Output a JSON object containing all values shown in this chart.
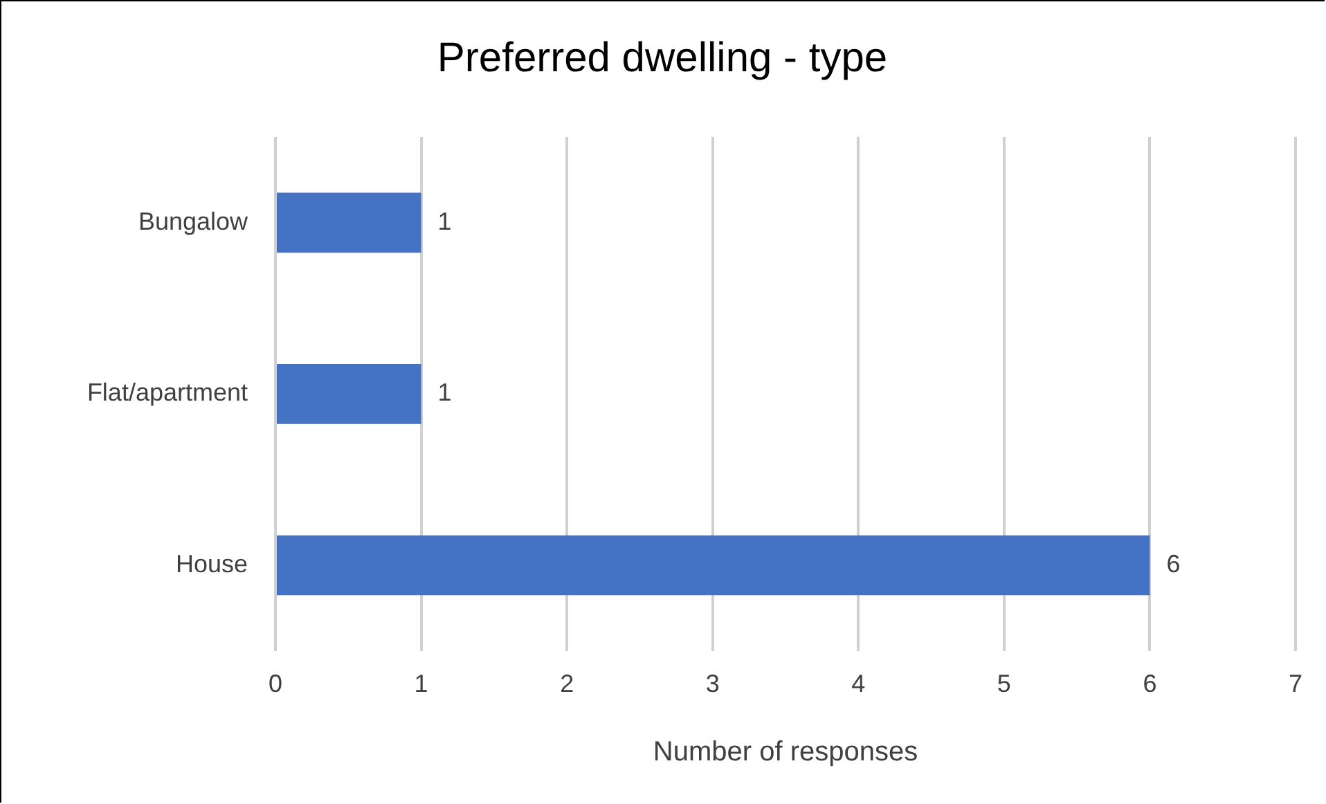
{
  "chart_data": {
    "type": "bar",
    "orientation": "horizontal",
    "title": "Preferred dwelling - type",
    "xlabel": "Number of responses",
    "categories": [
      "Bungalow",
      "Flat/apartment",
      "House"
    ],
    "values": [
      1,
      1,
      6
    ],
    "color": "#4472c4",
    "xlim": [
      0,
      7
    ],
    "xticks": [
      0,
      1,
      2,
      3,
      4,
      5,
      6,
      7
    ],
    "grid": "x",
    "legend": false,
    "data_labels": true
  }
}
